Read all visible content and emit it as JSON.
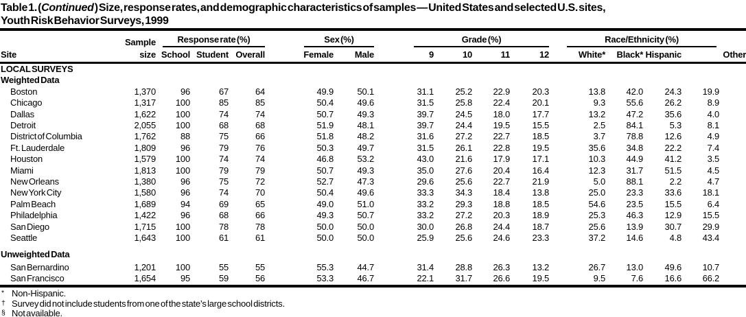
{
  "colors": {
    "text": "#000000",
    "background": "#ffffff",
    "rule": "#000000"
  },
  "title": {
    "prefix": "Table 1. (",
    "continued": "Continued",
    "rest_line1": " ) Size, response rates, and demographic characteristics of samples — United States and selected U.S. sites,",
    "line2": "Youth Risk Behavior Surveys, 1999"
  },
  "header": {
    "site": "Site",
    "sample_line1": "Sample",
    "sample_line2": "size",
    "groups": [
      {
        "label": "Response rate (%)",
        "cols": [
          "School",
          "Student",
          "Overall"
        ]
      },
      {
        "label": "Sex (%)",
        "cols": [
          "Female",
          "Male"
        ]
      },
      {
        "label": "Grade (%)",
        "cols": [
          "9",
          "10",
          "11",
          "12"
        ]
      },
      {
        "label": "Race/Ethnicity (%)",
        "cols": [
          "White*",
          "Black*",
          "Hispanic",
          "Other"
        ]
      }
    ]
  },
  "table": {
    "sections": [
      {
        "heading": "LOCAL SURVEYS",
        "gap": false,
        "rows": []
      },
      {
        "heading": "Weighted Data",
        "gap": false,
        "rows": [
          [
            "Boston",
            "1,370",
            "96",
            "67",
            "64",
            "49.9",
            "50.1",
            "31.1",
            "25.2",
            "22.9",
            "20.3",
            "13.8",
            "42.0",
            "24.3",
            "19.9"
          ],
          [
            "Chicago",
            "1,317",
            "100",
            "85",
            "85",
            "50.4",
            "49.6",
            "31.5",
            "25.8",
            "22.4",
            "20.1",
            "9.3",
            "55.6",
            "26.2",
            "8.9"
          ],
          [
            "Dallas",
            "1,622",
            "100",
            "74",
            "74",
            "50.7",
            "49.3",
            "39.7",
            "24.5",
            "18.0",
            "17.7",
            "13.2",
            "47.2",
            "35.6",
            "4.0"
          ],
          [
            "Detroit",
            "2,055",
            "100",
            "68",
            "68",
            "51.9",
            "48.1",
            "39.7",
            "24.4",
            "19.5",
            "15.5",
            "2.5",
            "84.1",
            "5.3",
            "8.1"
          ],
          [
            "District of Columbia",
            "1,762",
            "88",
            "75",
            "66",
            "51.8",
            "48.2",
            "31.6",
            "27.2",
            "22.7",
            "18.5",
            "3.7",
            "78.8",
            "12.6",
            "4.9"
          ],
          [
            "Ft. Lauderdale",
            "1,809",
            "96",
            "79",
            "76",
            "50.3",
            "49.7",
            "31.5",
            "26.1",
            "22.8",
            "19.5",
            "35.6",
            "34.8",
            "22.2",
            "7.4"
          ],
          [
            "Houston",
            "1,579",
            "100",
            "74",
            "74",
            "46.8",
            "53.2",
            "43.0",
            "21.6",
            "17.9",
            "17.1",
            "10.3",
            "44.9",
            "41.2",
            "3.5"
          ],
          [
            "Miami",
            "1,813",
            "100",
            "79",
            "79",
            "50.7",
            "49.3",
            "35.0",
            "27.6",
            "20.4",
            "16.4",
            "12.3",
            "31.7",
            "51.5",
            "4.5"
          ],
          [
            "New Orleans",
            "1,380",
            "96",
            "75",
            "72",
            "52.7",
            "47.3",
            "29.6",
            "25.6",
            "22.7",
            "21.9",
            "5.0",
            "88.1",
            "2.2",
            "4.7"
          ],
          [
            "New York City",
            "1,580",
            "96",
            "74",
            "70",
            "50.4",
            "49.6",
            "33.3",
            "34.3",
            "18.4",
            "13.8",
            "25.0",
            "23.3",
            "33.6",
            "18.1"
          ],
          [
            "Palm Beach",
            "1,689",
            "94",
            "69",
            "65",
            "49.0",
            "51.0",
            "33.2",
            "29.3",
            "18.8",
            "18.5",
            "54.6",
            "23.5",
            "15.5",
            "6.4"
          ],
          [
            "Philadelphia",
            "1,422",
            "96",
            "68",
            "66",
            "49.3",
            "50.7",
            "33.2",
            "27.2",
            "20.3",
            "18.9",
            "25.3",
            "46.3",
            "12.9",
            "15.5"
          ],
          [
            "San Diego",
            "1,715",
            "100",
            "78",
            "78",
            "50.0",
            "50.0",
            "30.0",
            "26.8",
            "24.4",
            "18.7",
            "25.6",
            "13.9",
            "30.7",
            "29.9"
          ],
          [
            "Seattle",
            "1,643",
            "100",
            "61",
            "61",
            "50.0",
            "50.0",
            "25.9",
            "25.6",
            "24.6",
            "23.3",
            "37.2",
            "14.6",
            "4.8",
            "43.4"
          ]
        ]
      },
      {
        "heading": "Unweighted Data",
        "gap": true,
        "rows": [
          [
            "San Bernardino",
            "1,201",
            "100",
            "55",
            "55",
            "55.3",
            "44.7",
            "31.4",
            "28.8",
            "26.3",
            "13.2",
            "26.7",
            "13.0",
            "49.6",
            "10.7"
          ],
          [
            "San Francisco",
            "1,654",
            "95",
            "59",
            "56",
            "53.3",
            "46.7",
            "22.1",
            "31.7",
            "26.6",
            "19.5",
            "9.5",
            "7.6",
            "16.6",
            "66.2"
          ]
        ]
      }
    ]
  },
  "footnotes": [
    {
      "symbol": "*",
      "text": "Non-Hispanic."
    },
    {
      "symbol": "†",
      "text": "Survey did not include students from one of the state’s large school districts."
    },
    {
      "symbol": "§",
      "text": "Not available."
    }
  ]
}
